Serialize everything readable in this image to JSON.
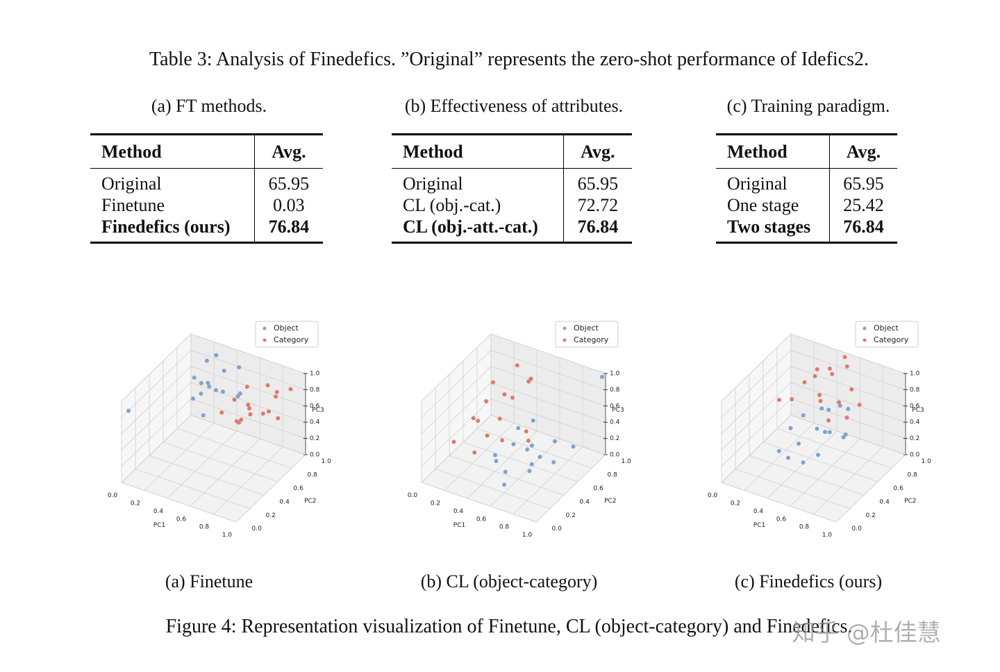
{
  "table_caption": "Table 3: Analysis of Finedefics. ”Original” represents the zero-shot performance of Idefics2.",
  "tables": [
    {
      "caption": "(a) FT methods.",
      "header": [
        "Method",
        "Avg."
      ],
      "rows": [
        [
          "Original",
          65.95
        ],
        [
          "Finetune",
          0.03
        ],
        [
          "Finedefics (ours)",
          76.84
        ]
      ]
    },
    {
      "caption": "(b) Effectiveness of attributes.",
      "header": [
        "Method",
        "Avg."
      ],
      "rows": [
        [
          "Original",
          65.95
        ],
        [
          "CL (obj.-cat.)",
          72.72
        ],
        [
          "CL (obj.-att.-cat.)",
          76.84
        ]
      ]
    },
    {
      "caption": "(c) Training paradigm.",
      "header": [
        "Method",
        "Avg."
      ],
      "rows": [
        [
          "Original",
          65.95
        ],
        [
          "One stage",
          25.42
        ],
        [
          "Two stages",
          76.84
        ]
      ]
    }
  ],
  "plot_axes": {
    "xlabel": "PC1",
    "ylabel": "PC2",
    "zlabel": "PC3",
    "lim": [
      0,
      1
    ],
    "ticks": [
      {
        "value": 0,
        "label": "0.0"
      },
      {
        "value": 0.2,
        "label": "0.2"
      },
      {
        "value": 0.4,
        "label": "0.4"
      },
      {
        "value": 0.6,
        "label": "0.6"
      },
      {
        "value": 0.8,
        "label": "0.8"
      },
      {
        "value": 1,
        "label": "1.0"
      }
    ]
  },
  "figures": [
    {
      "type": "scatter3d",
      "caption": "(a) Finetune",
      "series": [
        {
          "name": "Object",
          "color": "#7fa3cc",
          "x": [
            0.0,
            0.15,
            0.2,
            0.25,
            0.3,
            0.35,
            0.4,
            0.2,
            0.3,
            0.45,
            0.5,
            0.35,
            0.25,
            0.4,
            0.15,
            0.55
          ],
          "y": [
            0.1,
            0.8,
            0.9,
            0.85,
            0.75,
            0.9,
            0.8,
            0.7,
            0.65,
            0.95,
            0.85,
            0.6,
            0.95,
            0.7,
            0.9,
            0.8
          ],
          "z": [
            0.8,
            0.7,
            0.85,
            0.6,
            0.75,
            0.8,
            0.65,
            0.55,
            0.7,
            0.85,
            0.6,
            0.5,
            0.9,
            0.75,
            0.55,
            0.7
          ]
        },
        {
          "name": "Category",
          "color": "#e0796d",
          "x": [
            0.5,
            0.55,
            0.6,
            0.65,
            0.7,
            0.75,
            0.8,
            0.6,
            0.7,
            0.85,
            0.9,
            0.65,
            0.55,
            0.75,
            0.8,
            0.45
          ],
          "y": [
            0.8,
            0.9,
            0.85,
            0.75,
            0.95,
            0.8,
            0.9,
            0.7,
            0.7,
            0.85,
            0.95,
            0.65,
            0.75,
            1.0,
            0.8,
            0.7
          ],
          "z": [
            0.6,
            0.7,
            0.5,
            0.65,
            0.75,
            0.55,
            0.7,
            0.45,
            0.6,
            0.5,
            0.8,
            0.55,
            0.4,
            0.65,
            0.6,
            0.5
          ]
        }
      ]
    },
    {
      "type": "scatter3d",
      "caption": "(b) CL (object-category)",
      "series": [
        {
          "name": "Object",
          "color": "#7fa3cc",
          "x": [
            0.4,
            0.5,
            0.55,
            0.6,
            0.65,
            0.7,
            0.75,
            0.8,
            0.85,
            0.45,
            0.6,
            0.7,
            0.5,
            0.9,
            1.0,
            0.55
          ],
          "y": [
            0.4,
            0.5,
            0.3,
            0.6,
            0.45,
            0.55,
            0.35,
            0.6,
            0.5,
            0.65,
            0.2,
            0.4,
            0.25,
            0.7,
            0.95,
            0.7
          ],
          "z": [
            0.2,
            0.3,
            0.15,
            0.25,
            0.35,
            0.2,
            0.3,
            0.4,
            0.25,
            0.35,
            0.1,
            0.15,
            0.3,
            0.3,
            1.0,
            0.45
          ]
        },
        {
          "name": "Category",
          "color": "#e0796d",
          "x": [
            0.1,
            0.15,
            0.2,
            0.25,
            0.3,
            0.35,
            0.4,
            0.45,
            0.5,
            0.2,
            0.3,
            0.55,
            0.25,
            0.6,
            0.35,
            0.4
          ],
          "y": [
            0.3,
            0.5,
            0.6,
            0.4,
            0.7,
            0.55,
            0.65,
            0.8,
            0.75,
            0.7,
            0.45,
            0.6,
            0.35,
            0.55,
            0.8,
            0.5
          ],
          "z": [
            0.3,
            0.45,
            0.6,
            0.55,
            0.65,
            0.5,
            0.7,
            0.8,
            0.9,
            0.75,
            0.35,
            0.4,
            0.2,
            0.35,
            0.95,
            0.3
          ]
        }
      ]
    },
    {
      "type": "scatter3d",
      "caption": "(c) Finedefics (ours)",
      "series": [
        {
          "name": "Object",
          "color": "#7fa3cc",
          "x": [
            0.3,
            0.35,
            0.4,
            0.45,
            0.5,
            0.55,
            0.6,
            0.65,
            0.7,
            0.4,
            0.5,
            0.6,
            0.35,
            0.75,
            0.55,
            0.45
          ],
          "y": [
            0.5,
            0.6,
            0.45,
            0.7,
            0.55,
            0.65,
            0.5,
            0.75,
            0.6,
            0.3,
            0.35,
            0.4,
            0.25,
            0.55,
            0.8,
            0.8
          ],
          "z": [
            0.4,
            0.5,
            0.3,
            0.55,
            0.45,
            0.35,
            0.5,
            0.6,
            0.4,
            0.25,
            0.2,
            0.3,
            0.35,
            0.5,
            0.55,
            0.45
          ]
        },
        {
          "name": "Category",
          "color": "#e0796d",
          "x": [
            0.2,
            0.3,
            0.35,
            0.4,
            0.45,
            0.5,
            0.55,
            0.6,
            0.65,
            0.7,
            0.25,
            0.5,
            0.6,
            0.4,
            0.75,
            0.3
          ],
          "y": [
            0.5,
            0.7,
            0.8,
            0.75,
            0.85,
            0.6,
            0.9,
            0.7,
            0.8,
            0.65,
            0.6,
            0.95,
            0.55,
            0.9,
            0.75,
            0.85
          ],
          "z": [
            0.7,
            0.8,
            0.9,
            0.65,
            0.85,
            0.75,
            0.95,
            0.7,
            0.8,
            0.6,
            0.65,
            1.0,
            0.6,
            0.85,
            0.7,
            0.75
          ]
        }
      ]
    }
  ],
  "figure_caption": "Figure 4: Representation visualization of Finetune, CL (object-category) and Finedefics.",
  "watermark": "知乎 @杜佳慧"
}
